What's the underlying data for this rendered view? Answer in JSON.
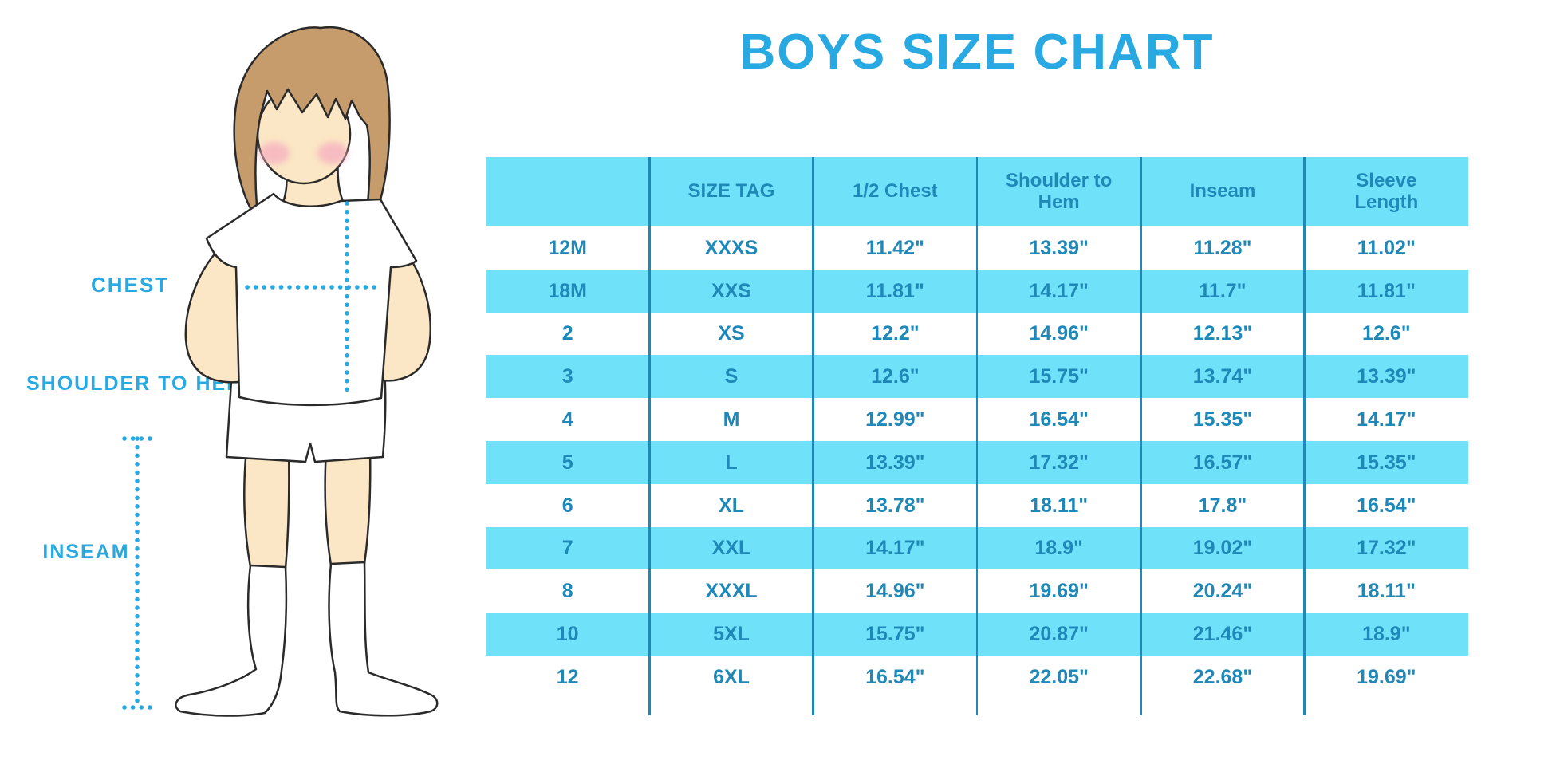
{
  "title": "BOYS SIZE CHART",
  "figure": {
    "labels": {
      "chest": "CHEST",
      "shoulder_to_hem": "SHOULDER TO HEM",
      "inseam": "INSEAM"
    }
  },
  "colors": {
    "accent_blue": "#29A9E1",
    "table_fill": "#6FE2FA",
    "table_ink": "#1E88B8",
    "skin": "#FBE7C5",
    "hair": "#C69C6D",
    "blush": "#F5AEC0",
    "outline": "#2A2A2A"
  },
  "chart_data": {
    "type": "table",
    "title": "BOYS SIZE CHART",
    "columns": [
      "",
      "SIZE TAG",
      "1/2 Chest",
      "Shoulder to Hem",
      "Inseam",
      "Sleeve Length"
    ],
    "rows": [
      [
        "12M",
        "XXXS",
        "11.42\"",
        "13.39\"",
        "11.28\"",
        "11.02\""
      ],
      [
        "18M",
        "XXS",
        "11.81\"",
        "14.17\"",
        "11.7\"",
        "11.81\""
      ],
      [
        "2",
        "XS",
        "12.2\"",
        "14.96\"",
        "12.13\"",
        "12.6\""
      ],
      [
        "3",
        "S",
        "12.6\"",
        "15.75\"",
        "13.74\"",
        "13.39\""
      ],
      [
        "4",
        "M",
        "12.99\"",
        "16.54\"",
        "15.35\"",
        "14.17\""
      ],
      [
        "5",
        "L",
        "13.39\"",
        "17.32\"",
        "16.57\"",
        "15.35\""
      ],
      [
        "6",
        "XL",
        "13.78\"",
        "18.11\"",
        "17.8\"",
        "16.54\""
      ],
      [
        "7",
        "XXL",
        "14.17\"",
        "18.9\"",
        "19.02\"",
        "17.32\""
      ],
      [
        "8",
        "XXXL",
        "14.96\"",
        "19.69\"",
        "20.24\"",
        "18.11\""
      ],
      [
        "10",
        "5XL",
        "15.75\"",
        "20.87\"",
        "21.46\"",
        "18.9\""
      ],
      [
        "12",
        "6XL",
        "16.54\"",
        "22.05\"",
        "22.68\"",
        "19.69\""
      ]
    ],
    "layout": {
      "stripe_pattern": "header and alternate rows light blue",
      "grid": "vertical column separators only"
    }
  }
}
